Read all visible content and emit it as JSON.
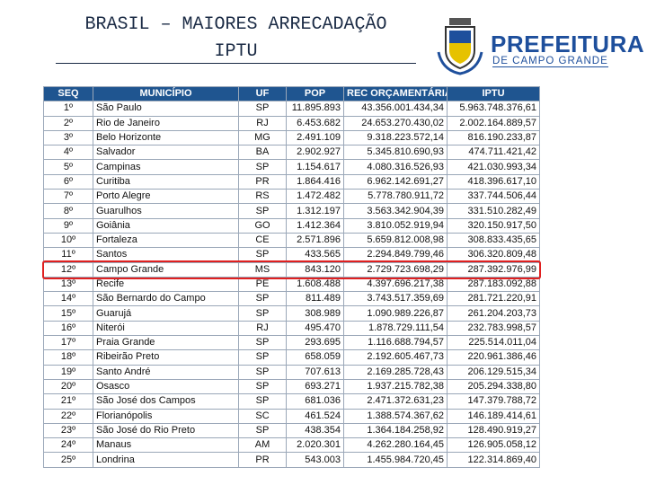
{
  "header": {
    "title_line1": "BRASIL – MAIORES ARRECADAÇÃO",
    "title_line2": "IPTU"
  },
  "logo": {
    "name": "PREFEITURA",
    "subname": "DE CAMPO GRANDE"
  },
  "table": {
    "columns": [
      "SEQ",
      "MUNICÍPIO",
      "UF",
      "POP",
      "REC ORÇAMENTÁRIA",
      "IPTU"
    ],
    "rows": [
      [
        "1º",
        "São Paulo",
        "SP",
        "11.895.893",
        "43.356.001.434,34",
        "5.963.748.376,61"
      ],
      [
        "2º",
        "Rio de Janeiro",
        "RJ",
        "6.453.682",
        "24.653.270.430,02",
        "2.002.164.889,57"
      ],
      [
        "3º",
        "Belo Horizonte",
        "MG",
        "2.491.109",
        "9.318.223.572,14",
        "816.190.233,87"
      ],
      [
        "4º",
        "Salvador",
        "BA",
        "2.902.927",
        "5.345.810.690,93",
        "474.711.421,42"
      ],
      [
        "5º",
        "Campinas",
        "SP",
        "1.154.617",
        "4.080.316.526,93",
        "421.030.993,34"
      ],
      [
        "6º",
        "Curitiba",
        "PR",
        "1.864.416",
        "6.962.142.691,27",
        "418.396.617,10"
      ],
      [
        "7º",
        "Porto Alegre",
        "RS",
        "1.472.482",
        "5.778.780.911,72",
        "337.744.506,44"
      ],
      [
        "8º",
        "Guarulhos",
        "SP",
        "1.312.197",
        "3.563.342.904,39",
        "331.510.282,49"
      ],
      [
        "9º",
        "Goiânia",
        "GO",
        "1.412.364",
        "3.810.052.919,94",
        "320.150.917,50"
      ],
      [
        "10º",
        "Fortaleza",
        "CE",
        "2.571.896",
        "5.659.812.008,98",
        "308.833.435,65"
      ],
      [
        "11º",
        "Santos",
        "SP",
        "433.565",
        "2.294.849.799,46",
        "306.320.809,48"
      ],
      [
        "12º",
        "Campo Grande",
        "MS",
        "843.120",
        "2.729.723.698,29",
        "287.392.976,99"
      ],
      [
        "13º",
        "Recife",
        "PE",
        "1.608.488",
        "4.397.696.217,38",
        "287.183.092,88"
      ],
      [
        "14º",
        "São Bernardo do Campo",
        "SP",
        "811.489",
        "3.743.517.359,69",
        "281.721.220,91"
      ],
      [
        "15º",
        "Guarujá",
        "SP",
        "308.989",
        "1.090.989.226,87",
        "261.204.203,73"
      ],
      [
        "16º",
        "Niterói",
        "RJ",
        "495.470",
        "1.878.729.111,54",
        "232.783.998,57"
      ],
      [
        "17º",
        "Praia Grande",
        "SP",
        "293.695",
        "1.116.688.794,57",
        "225.514.011,04"
      ],
      [
        "18º",
        "Ribeirão Preto",
        "SP",
        "658.059",
        "2.192.605.467,73",
        "220.961.386,46"
      ],
      [
        "19º",
        "Santo André",
        "SP",
        "707.613",
        "2.169.285.728,43",
        "206.129.515,34"
      ],
      [
        "20º",
        "Osasco",
        "SP",
        "693.271",
        "1.937.215.782,38",
        "205.294.338,80"
      ],
      [
        "21º",
        "São José dos Campos",
        "SP",
        "681.036",
        "2.471.372.631,23",
        "147.379.788,72"
      ],
      [
        "22º",
        "Florianópolis",
        "SC",
        "461.524",
        "1.388.574.367,62",
        "146.189.414,61"
      ],
      [
        "23º",
        "São José do Rio Preto",
        "SP",
        "438.354",
        "1.364.184.258,92",
        "128.490.919,27"
      ],
      [
        "24º",
        "Manaus",
        "AM",
        "2.020.301",
        "4.262.280.164,45",
        "126.905.058,12"
      ],
      [
        "25º",
        "Londrina",
        "PR",
        "543.003",
        "1.455.984.720,45",
        "122.314.869,40"
      ]
    ]
  }
}
